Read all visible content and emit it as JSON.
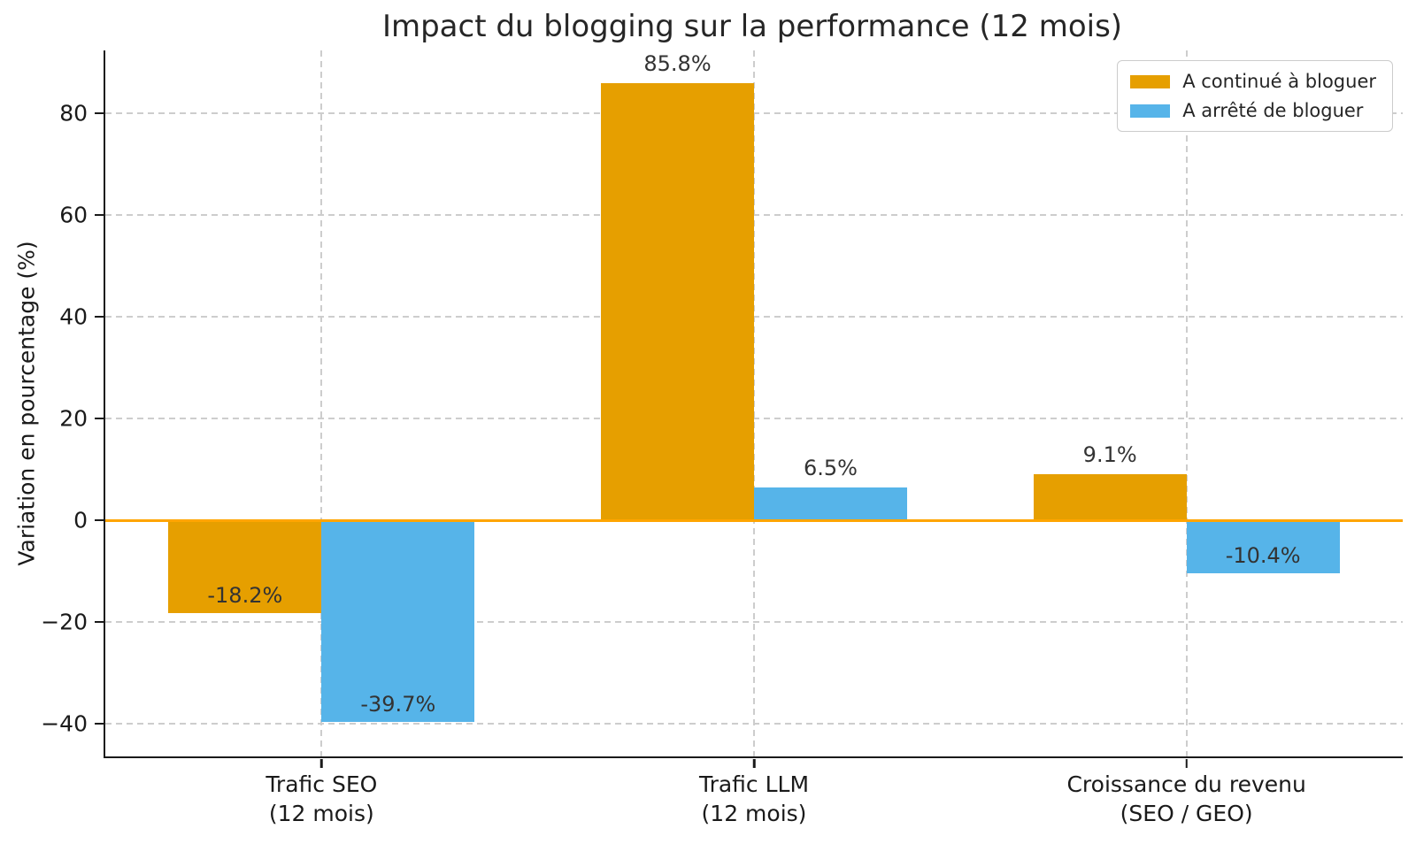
{
  "chart_data": {
    "type": "bar",
    "title": "Impact du blogging sur la performance (12 mois)",
    "ylabel": "Variation en pourcentage (%)",
    "xlabel": "",
    "categories": [
      [
        "Trafic SEO",
        "(12 mois)"
      ],
      [
        "Trafic LLM",
        "(12 mois)"
      ],
      [
        "Croissance du revenu",
        "(SEO / GEO)"
      ]
    ],
    "series": [
      {
        "name": "A continué à bloguer",
        "color": "#E69F00",
        "values": [
          -18.2,
          85.8,
          9.1
        ],
        "labels": [
          "-18.2%",
          "85.8%",
          "9.1%"
        ]
      },
      {
        "name": "A arrêté de bloguer",
        "color": "#56B4E9",
        "values": [
          -39.7,
          6.5,
          -10.4
        ],
        "labels": [
          "-39.7%",
          "6.5%",
          "-10.4%"
        ]
      }
    ],
    "yticks": [
      {
        "value": 80,
        "label": "80"
      },
      {
        "value": 60,
        "label": "60"
      },
      {
        "value": 40,
        "label": "40"
      },
      {
        "value": 20,
        "label": "20"
      },
      {
        "value": 0,
        "label": "0"
      },
      {
        "value": -20,
        "label": "−20"
      },
      {
        "value": -40,
        "label": "−40"
      }
    ],
    "ylim": [
      -46.4,
      92.3
    ],
    "grid": true,
    "grid_style": "dashed",
    "grid_color": "#cdcdcd",
    "zero_line_value": 0,
    "zero_line_color": "#FFA500",
    "legend_position": "upper right"
  }
}
